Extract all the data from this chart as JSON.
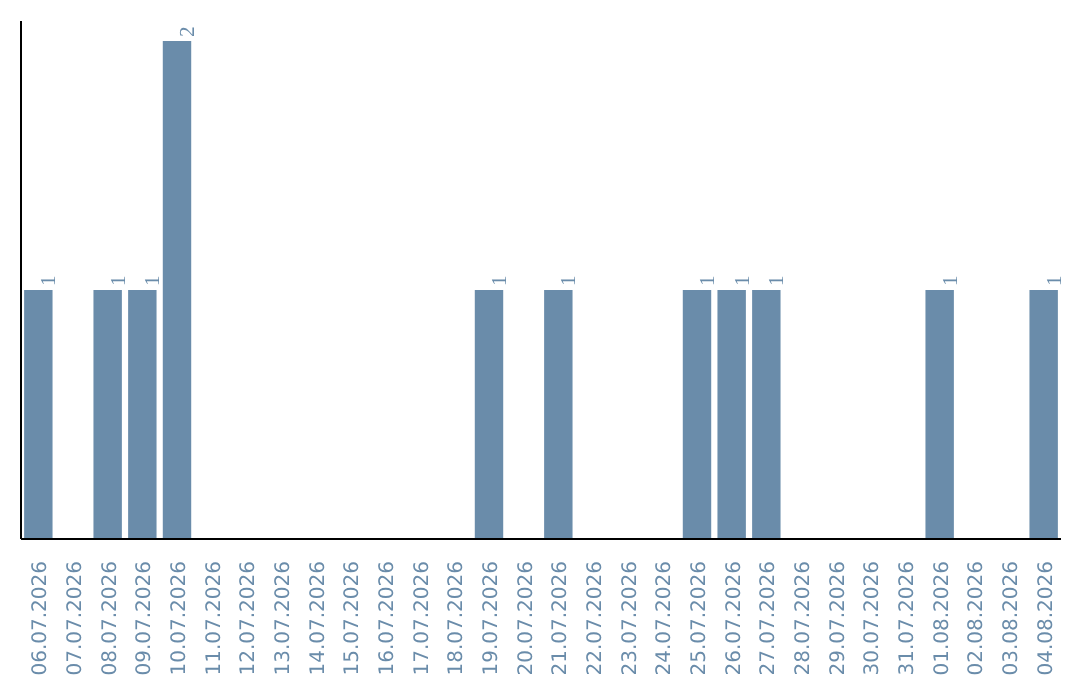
{
  "chart_data": {
    "type": "bar",
    "categories": [
      "06.07.2026",
      "07.07.2026",
      "08.07.2026",
      "09.07.2026",
      "10.07.2026",
      "11.07.2026",
      "12.07.2026",
      "13.07.2026",
      "14.07.2026",
      "15.07.2026",
      "16.07.2026",
      "17.07.2026",
      "18.07.2026",
      "19.07.2026",
      "20.07.2026",
      "21.07.2026",
      "22.07.2026",
      "23.07.2026",
      "24.07.2026",
      "25.07.2026",
      "26.07.2026",
      "27.07.2026",
      "28.07.2026",
      "29.07.2026",
      "30.07.2026",
      "31.07.2026",
      "01.08.2026",
      "02.08.2026",
      "03.08.2026",
      "04.08.2026"
    ],
    "values": [
      1,
      0,
      1,
      1,
      2,
      0,
      0,
      0,
      0,
      0,
      0,
      0,
      0,
      1,
      0,
      1,
      0,
      0,
      0,
      1,
      1,
      1,
      0,
      0,
      0,
      0,
      1,
      0,
      0,
      1
    ],
    "value_labels": [
      "1",
      null,
      "1",
      "1",
      "2",
      null,
      null,
      null,
      null,
      null,
      null,
      null,
      null,
      "1",
      null,
      "1",
      null,
      null,
      null,
      "1",
      "1",
      "1",
      null,
      null,
      null,
      null,
      "1",
      null,
      null,
      "1"
    ],
    "color": "#6a8caa",
    "tick_labels": "x",
    "grid": false
  }
}
